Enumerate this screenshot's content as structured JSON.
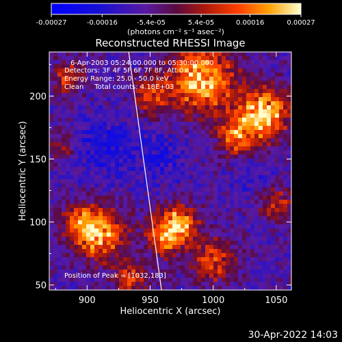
{
  "chart_data": {
    "type": "heatmap",
    "title": "Reconstructed RHESSI Image",
    "xlabel": "Heliocentric X (arcsec)",
    "ylabel": "Heliocentric Y (arcsec)",
    "xlim": [
      870,
      1062
    ],
    "ylim": [
      46,
      235
    ],
    "x_ticks": [
      900,
      950,
      1000,
      1050
    ],
    "y_ticks": [
      50,
      100,
      150,
      200
    ],
    "x_tick_labels": [
      "900",
      "950",
      "1000",
      "1050"
    ],
    "y_tick_labels": [
      "50",
      "100",
      "150",
      "200"
    ],
    "colorbar": {
      "range": [
        -0.00027,
        0.00027
      ],
      "tick_labels": [
        "-0.00027",
        "-0.00016",
        "-5.4e-05",
        "5.4e-05",
        "0.00016",
        "0.00027"
      ],
      "tick_values": [
        -0.00027,
        -0.00016,
        -5.4e-05,
        5.4e-05,
        0.00016,
        0.00027
      ],
      "unit_label": "(photons cm⁻² s⁻¹ asec⁻²)"
    },
    "annotations": [
      "6-Apr-2003 05:24:00.000 to 05:30:00.000",
      "Detectors: 3F 4F 5F 6F 7F 8F, Att 0",
      "Energy Range: 25.0 - 50.0 keV",
      "Clean     Total counts: 4.18E+03"
    ],
    "peak_label": "Position of Peak = [1032,183]",
    "limb_line": {
      "x": [
        933,
        959
      ],
      "y": [
        235,
        46
      ]
    },
    "hot_regions": [
      {
        "x": 990,
        "y": 213,
        "amp": 1.0,
        "sigma": 18
      },
      {
        "x": 1040,
        "y": 187,
        "amp": 0.95,
        "sigma": 14
      },
      {
        "x": 1020,
        "y": 168,
        "amp": 0.7,
        "sigma": 12
      },
      {
        "x": 910,
        "y": 90,
        "amp": 0.85,
        "sigma": 14
      },
      {
        "x": 895,
        "y": 100,
        "amp": 0.6,
        "sigma": 10
      },
      {
        "x": 962,
        "y": 90,
        "amp": 0.85,
        "sigma": 11
      },
      {
        "x": 975,
        "y": 100,
        "amp": 0.65,
        "sigma": 10
      },
      {
        "x": 1000,
        "y": 70,
        "amp": 0.6,
        "sigma": 12
      },
      {
        "x": 885,
        "y": 215,
        "amp": 0.55,
        "sigma": 9
      },
      {
        "x": 950,
        "y": 200,
        "amp": 0.5,
        "sigma": 10
      },
      {
        "x": 1050,
        "y": 115,
        "amp": 0.5,
        "sigma": 9
      },
      {
        "x": 935,
        "y": 55,
        "amp": 0.55,
        "sigma": 9
      },
      {
        "x": 880,
        "y": 160,
        "amp": 0.4,
        "sigma": 8
      }
    ],
    "cold_regions": [
      {
        "x": 915,
        "y": 160,
        "amp": 0.6,
        "sigma": 18
      },
      {
        "x": 960,
        "y": 150,
        "amp": 0.45,
        "sigma": 14
      },
      {
        "x": 1030,
        "y": 140,
        "amp": 0.4,
        "sigma": 12
      }
    ]
  },
  "timestamp": "30-Apr-2022 14:03"
}
